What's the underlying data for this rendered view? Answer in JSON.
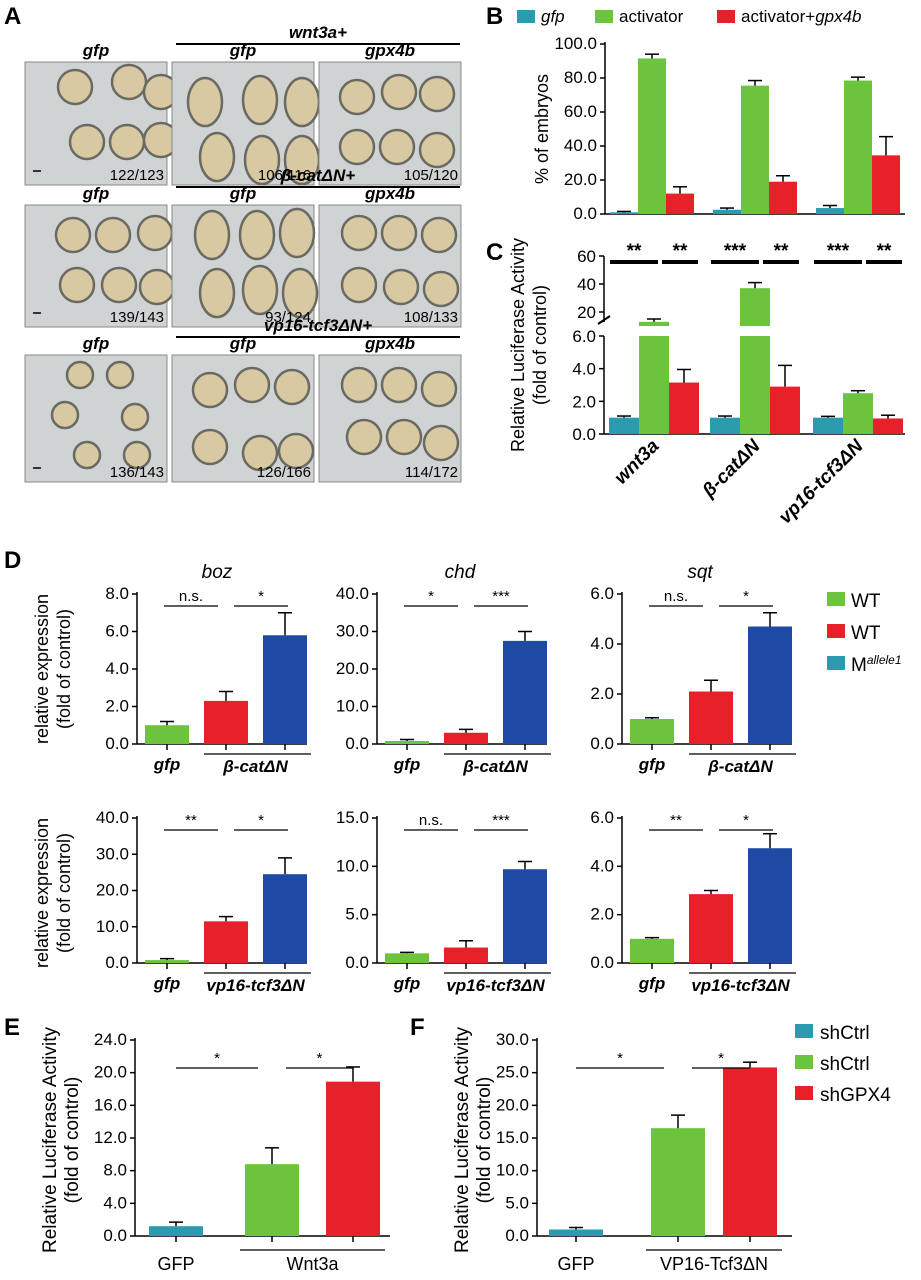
{
  "colors": {
    "teal": "#2b9bb0",
    "green": "#6cc43c",
    "red": "#e8202a",
    "blue": "#1f4aa3",
    "photo_bg": "#cfd3d4",
    "embryo": "#d9c9a3",
    "embryo_edge": "#6a6a62"
  },
  "panel_labels": {
    "A": "A",
    "B": "B",
    "C": "C",
    "D": "D",
    "E": "E",
    "F": "F"
  },
  "panelA": {
    "rows": [
      {
        "group": "wnt3a+",
        "labels": [
          "gfp",
          "gfp",
          "gpx4b"
        ],
        "counts": [
          "122/123",
          "106/116",
          "105/120"
        ]
      },
      {
        "group": "β-catΔN+",
        "labels": [
          "gfp",
          "gfp",
          "gpx4b"
        ],
        "counts": [
          "139/143",
          "93/124",
          "108/133"
        ]
      },
      {
        "group": "vp16-tcf3ΔN+",
        "labels": [
          "gfp",
          "gfp",
          "gpx4b"
        ],
        "counts": [
          "136/143",
          "126/166",
          "114/172"
        ]
      }
    ]
  },
  "panelB": {
    "legend": [
      {
        "label": "gfp",
        "italic": true
      },
      {
        "label": "activator",
        "italic": false
      },
      {
        "label": "activator+",
        "suffix": "gpx4b"
      }
    ]
  },
  "panelC": {
    "sig": [
      [
        "**",
        "**"
      ],
      [
        "***",
        "**"
      ],
      [
        "***",
        "**"
      ]
    ]
  },
  "panelD": {
    "titles": [
      "boz",
      "chd",
      "sqt"
    ],
    "legend": [
      {
        "label": "WT"
      },
      {
        "label": "WT"
      },
      {
        "label": "M",
        "sup": "allele1"
      }
    ],
    "x_gfp": "gfp",
    "x_groups": [
      "β-catΔN",
      "vp16-tcf3ΔN"
    ],
    "sig": [
      [
        "n.s.",
        "*"
      ],
      [
        "*",
        "***"
      ],
      [
        "n.s.",
        "*"
      ],
      [
        "**",
        "*"
      ],
      [
        "n.s.",
        "***"
      ],
      [
        "**",
        "*"
      ]
    ]
  },
  "panelE": {
    "categories": [
      "GFP",
      "Wnt3a"
    ],
    "sig": [
      "*",
      "*"
    ]
  },
  "panelF": {
    "categories": [
      "GFP",
      "VP16-Tcf3ΔN"
    ],
    "sig": [
      "*",
      "*"
    ],
    "legend": [
      "shCtrl",
      "shCtrl",
      "shGPX4"
    ]
  },
  "chart_data": [
    {
      "id": "B",
      "type": "bar",
      "categories": [
        "wnt3a",
        "β-catΔN",
        "vp16-tcf3ΔN"
      ],
      "series": [
        {
          "name": "gfp",
          "values": [
            1,
            2.5,
            3.5
          ],
          "errors": [
            0.5,
            1,
            1.5
          ]
        },
        {
          "name": "activator",
          "values": [
            91.5,
            75.5,
            78.5
          ],
          "errors": [
            2.5,
            3,
            2
          ]
        },
        {
          "name": "activator+gpx4b",
          "values": [
            12,
            19,
            34.5
          ],
          "errors": [
            4,
            3.5,
            11
          ]
        }
      ],
      "ylabel": "% of embryos",
      "ylim": [
        0,
        100
      ],
      "yticks": [
        "0.0",
        "20.0",
        "40.0",
        "60.0",
        "80.0",
        "100.0"
      ]
    },
    {
      "id": "C",
      "type": "bar",
      "categories": [
        "wnt3a",
        "β-catΔN",
        "vp16-tcf3ΔN"
      ],
      "series": [
        {
          "name": "gfp",
          "values": [
            1,
            1,
            1
          ],
          "errors": [
            0.1,
            0.1,
            0.08
          ]
        },
        {
          "name": "activator",
          "values": [
            13,
            37,
            2.5
          ],
          "errors": [
            2,
            4,
            0.15
          ]
        },
        {
          "name": "activator+gpx4b",
          "values": [
            3.15,
            2.9,
            0.95
          ],
          "errors": [
            0.8,
            1.3,
            0.2
          ]
        }
      ],
      "ylabel": "Relative Luciferase Activity (fold of control)",
      "broken_axis": true,
      "yticks_low": [
        "0.0",
        "2.0",
        "4.0",
        "6.0"
      ],
      "yticks_high": [
        "20",
        "40",
        "60"
      ]
    },
    {
      "id": "D-boz-1",
      "type": "bar",
      "categories": [
        "gfp",
        "β-catΔN",
        "β-catΔN"
      ],
      "values": [
        1,
        2.3,
        5.8
      ],
      "errors": [
        0.2,
        0.5,
        1.2
      ],
      "ylim": [
        0,
        8
      ],
      "yticks": [
        "0.0",
        "2.0",
        "4.0",
        "6.0",
        "8.0"
      ],
      "ylabel": "relative expression (fold of control)"
    },
    {
      "id": "D-chd-1",
      "type": "bar",
      "categories": [
        "gfp",
        "β-catΔN",
        "β-catΔN"
      ],
      "values": [
        0.8,
        3,
        27.5
      ],
      "errors": [
        0.4,
        0.9,
        2.5
      ],
      "ylim": [
        0,
        40
      ],
      "yticks": [
        "0.0",
        "10.0",
        "20.0",
        "30.0",
        "40.0"
      ]
    },
    {
      "id": "D-sqt-1",
      "type": "bar",
      "categories": [
        "gfp",
        "β-catΔN",
        "β-catΔN"
      ],
      "values": [
        1,
        2.1,
        4.7
      ],
      "errors": [
        0.05,
        0.45,
        0.55
      ],
      "ylim": [
        0,
        6
      ],
      "yticks": [
        "0.0",
        "2.0",
        "4.0",
        "6.0"
      ]
    },
    {
      "id": "D-boz-2",
      "type": "bar",
      "categories": [
        "gfp",
        "vp16-tcf3ΔN",
        "vp16-tcf3ΔN"
      ],
      "values": [
        0.8,
        11.5,
        24.5
      ],
      "errors": [
        0.4,
        1.3,
        4.5
      ],
      "ylim": [
        0,
        40
      ],
      "yticks": [
        "0.0",
        "10.0",
        "20.0",
        "30.0",
        "40.0"
      ],
      "ylabel": "relative expression (fold of control)"
    },
    {
      "id": "D-chd-2",
      "type": "bar",
      "categories": [
        "gfp",
        "vp16-tcf3ΔN",
        "vp16-tcf3ΔN"
      ],
      "values": [
        1,
        1.6,
        9.7
      ],
      "errors": [
        0.1,
        0.7,
        0.8
      ],
      "ylim": [
        0,
        15
      ],
      "yticks": [
        "0.0",
        "5.0",
        "10.0",
        "15.0"
      ]
    },
    {
      "id": "D-sqt-2",
      "type": "bar",
      "categories": [
        "gfp",
        "vp16-tcf3ΔN",
        "vp16-tcf3ΔN"
      ],
      "values": [
        1,
        2.85,
        4.75
      ],
      "errors": [
        0.05,
        0.15,
        0.6
      ],
      "ylim": [
        0,
        6
      ],
      "yticks": [
        "0.0",
        "2.0",
        "4.0",
        "6.0"
      ]
    },
    {
      "id": "E",
      "type": "bar",
      "categories": [
        "GFP",
        "Wnt3a",
        "Wnt3a"
      ],
      "values": [
        1.2,
        8.8,
        18.9
      ],
      "errors": [
        0.5,
        2,
        1.8
      ],
      "ylim": [
        0,
        24
      ],
      "yticks": [
        "0.0",
        "4.0",
        "8.0",
        "12.0",
        "16.0",
        "20.0",
        "24.0"
      ],
      "ylabel": "Relative Luciferase Activity (fold of control)"
    },
    {
      "id": "F",
      "type": "bar",
      "categories": [
        "GFP",
        "VP16-Tcf3ΔN",
        "VP16-Tcf3ΔN"
      ],
      "values": [
        1,
        16.5,
        25.8
      ],
      "errors": [
        0.3,
        2,
        0.8
      ],
      "ylim": [
        0,
        30
      ],
      "yticks": [
        "0.0",
        "5.0",
        "10.0",
        "15.0",
        "20.0",
        "25.0",
        "30.0"
      ],
      "ylabel": "Relative Luciferase Activity (fold of control)"
    }
  ]
}
